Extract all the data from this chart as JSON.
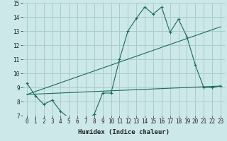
{
  "xlabel": "Humidex (Indice chaleur)",
  "background_color": "#cce8e8",
  "grid_color": "#aacccc",
  "line_color": "#1a6b5a",
  "xlim": [
    -0.5,
    23.5
  ],
  "ylim": [
    7,
    15
  ],
  "yticks": [
    7,
    8,
    9,
    10,
    11,
    12,
    13,
    14,
    15
  ],
  "xticks": [
    0,
    1,
    2,
    3,
    4,
    5,
    6,
    7,
    8,
    9,
    10,
    11,
    12,
    13,
    14,
    15,
    16,
    17,
    18,
    19,
    20,
    21,
    22,
    23
  ],
  "line1_x": [
    0,
    1,
    2,
    3,
    4,
    5,
    6,
    7,
    8,
    9,
    10,
    11,
    12,
    13,
    14,
    15,
    16,
    17,
    18,
    19,
    20,
    21,
    22,
    23
  ],
  "line1_y": [
    9.3,
    8.4,
    7.8,
    8.1,
    7.3,
    6.85,
    6.65,
    6.65,
    7.1,
    8.6,
    8.6,
    11.0,
    13.0,
    13.9,
    14.7,
    14.2,
    14.7,
    12.9,
    13.85,
    12.6,
    10.6,
    9.0,
    9.0,
    9.1
  ],
  "line2_x": [
    0,
    23
  ],
  "line2_y": [
    8.5,
    13.3
  ],
  "line3_x": [
    0,
    23
  ],
  "line3_y": [
    8.5,
    9.1
  ]
}
